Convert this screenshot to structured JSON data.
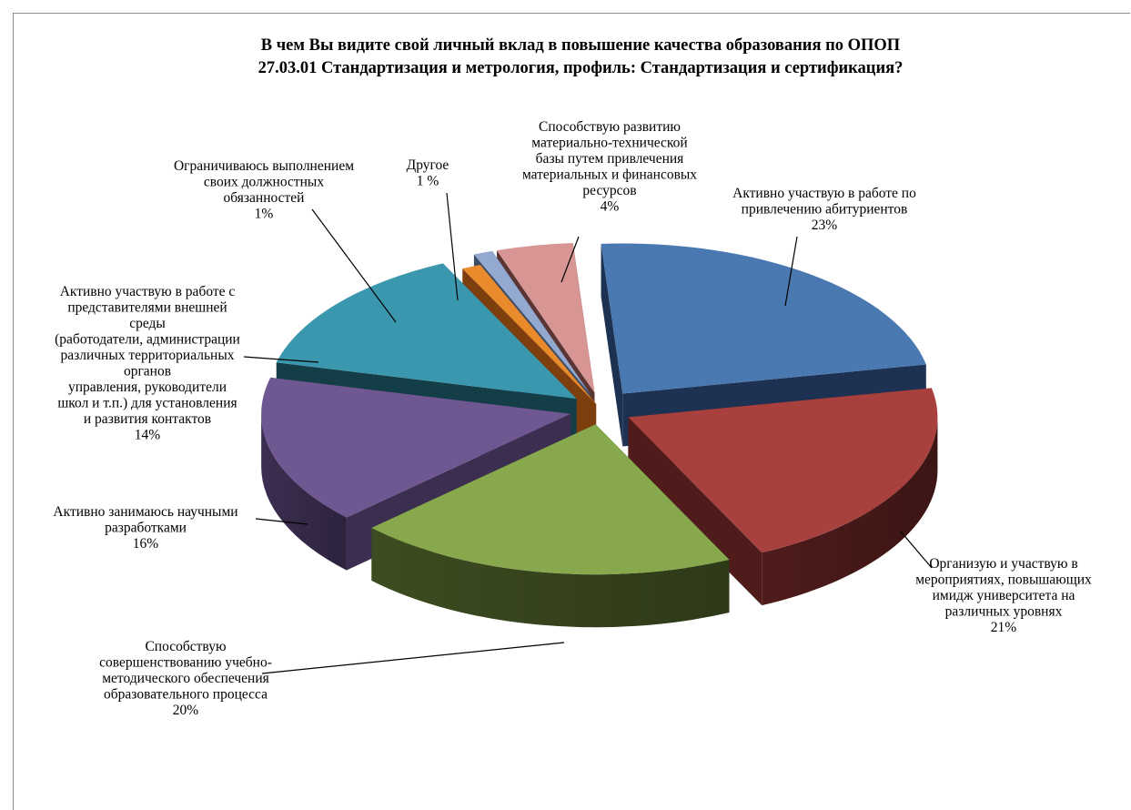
{
  "chart_data": {
    "type": "pie",
    "style": "3d-exploded",
    "title_lines": [
      "В чем Вы видите свой личный вклад в повышение качества образования по ОПОП",
      "27.03.01 Стандартизация и метрология, профиль:  Стандартизация и сертификация?"
    ],
    "legend": "none",
    "slices": [
      {
        "label_lines": [
          "Активно участвую  в работе по",
          "привлечению абитуриентов"
        ],
        "pct_label": "23%",
        "value": 23,
        "color": "#4a78b0",
        "side_color": "#1d3152"
      },
      {
        "label_lines": [
          "Организую и участвую в",
          "мероприятиях, повышающих",
          "имидж университета на",
          "различных уровнях"
        ],
        "pct_label": "21%",
        "value": 21,
        "color": "#a8403e",
        "side_color": "#4f1c1b"
      },
      {
        "label_lines": [
          "Способствую",
          "совершенствованию учебно-",
          "методического обеспечения",
          "образовательного процесса"
        ],
        "pct_label": "20%",
        "value": 20,
        "color": "#88a84e",
        "side_color": "#3d4c20"
      },
      {
        "label_lines": [
          "Активно занимаюсь научными",
          "разработками"
        ],
        "pct_label": "16%",
        "value": 16,
        "color": "#6f5791",
        "side_color": "#3c2e51"
      },
      {
        "label_lines": [
          "Активно участвую  в работе с",
          "представителями внешней",
          "среды",
          "(работодатели, администрации",
          "различных территориальных",
          "органов",
          "управления, руководители",
          "школ и т.п.) для установления",
          "и развития контактов"
        ],
        "pct_label": "14%",
        "value": 14,
        "color": "#3b97ad",
        "side_color": "#133e48"
      },
      {
        "label_lines": [
          "Ограничиваюсь выполнением",
          "своих должностных",
          "обязанностей"
        ],
        "pct_label": "1%",
        "value": 1,
        "color": "#e98a2d",
        "side_color": "#7d3f0e"
      },
      {
        "label_lines": [
          "Другое"
        ],
        "pct_label": "1 %",
        "value": 1,
        "color": "#93a9d0",
        "side_color": "#3c4d66"
      },
      {
        "label_lines": [
          "Способствую развитию",
          "материально-технической",
          "базы путем привлечения",
          "материальных и финансовых",
          "ресурсов"
        ],
        "pct_label": "4%",
        "value": 4,
        "color": "#d79594",
        "side_color": "#5a3534"
      }
    ]
  }
}
